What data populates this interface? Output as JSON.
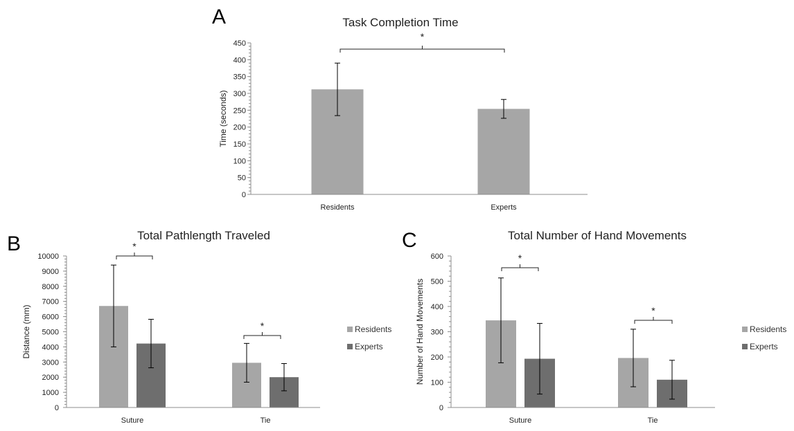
{
  "chart_data": [
    {
      "panel": "A",
      "type": "bar",
      "title": "Task Completion Time",
      "ylabel": "Time (seconds)",
      "xlabel": "",
      "ylim": [
        0,
        450
      ],
      "yticks": [
        "0",
        "50",
        "100",
        "150",
        "200",
        "250",
        "300",
        "350",
        "400",
        "450"
      ],
      "categories": [
        "Residents",
        "Experts"
      ],
      "series": [
        {
          "values": [
            312,
            254
          ],
          "errors": [
            78,
            28
          ],
          "color": "#a6a6a6"
        }
      ],
      "significance": [
        {
          "label": "*",
          "between": [
            "Residents",
            "Experts"
          ]
        }
      ]
    },
    {
      "panel": "B",
      "type": "bar",
      "title": "Total Pathlength Traveled",
      "ylabel": "Distance (mm)",
      "xlabel": "",
      "ylim": [
        0,
        10000
      ],
      "yticks": [
        "0",
        "1000",
        "2000",
        "3000",
        "4000",
        "5000",
        "6000",
        "7000",
        "8000",
        "9000",
        "10000"
      ],
      "categories": [
        "Suture",
        "Tie"
      ],
      "legend": "right",
      "series": [
        {
          "name": "Residents",
          "values": [
            6700,
            2950
          ],
          "errors": [
            2700,
            1280
          ],
          "color": "#a6a6a6"
        },
        {
          "name": "Experts",
          "values": [
            4220,
            2000
          ],
          "errors": [
            1600,
            900
          ],
          "color": "#6e6e6e"
        }
      ],
      "significance": [
        {
          "label": "*",
          "category": "Suture"
        },
        {
          "label": "*",
          "category": "Tie"
        }
      ]
    },
    {
      "panel": "C",
      "type": "bar",
      "title": "Total Number of Hand Movements",
      "ylabel": "Number of Hand Movements",
      "xlabel": "",
      "ylim": [
        0,
        600
      ],
      "yticks": [
        "0",
        "100",
        "200",
        "300",
        "400",
        "500",
        "600"
      ],
      "categories": [
        "Suture",
        "Tie"
      ],
      "legend": "right",
      "series": [
        {
          "name": "Residents",
          "values": [
            345,
            196
          ],
          "errors": [
            168,
            114
          ],
          "color": "#a6a6a6"
        },
        {
          "name": "Experts",
          "values": [
            193,
            110
          ],
          "errors": [
            140,
            77
          ],
          "color": "#6e6e6e"
        }
      ],
      "significance": [
        {
          "label": "*",
          "category": "Suture"
        },
        {
          "label": "*",
          "category": "Tie"
        }
      ]
    }
  ]
}
